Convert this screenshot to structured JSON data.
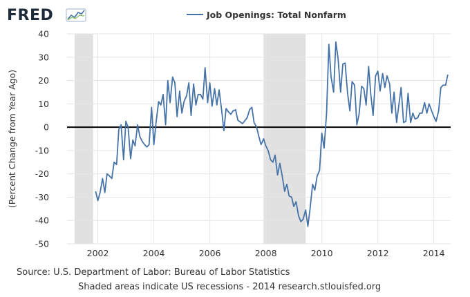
{
  "logo": {
    "text": "FRED"
  },
  "footer": {
    "source": "Source: U.S. Department of Labor: Bureau of Labor Statistics",
    "note": "Shaded areas indicate US recessions - 2014 research.stlouisfed.org"
  },
  "colors": {
    "line": "#4572a7",
    "recession": "#e1e1e1",
    "grid": "#e6e6e6",
    "zero_line": "#000000",
    "text": "#333333"
  },
  "chart_data": {
    "type": "line",
    "title": "",
    "xlabel": "",
    "ylabel": "(Percent Change from Year Ago)",
    "xlim": [
      2000.9,
      2014.6
    ],
    "ylim": [
      -50,
      40
    ],
    "yticks": [
      -50,
      -40,
      -30,
      -20,
      -10,
      0,
      10,
      20,
      30,
      40
    ],
    "xticks": [
      2002,
      2004,
      2006,
      2008,
      2010,
      2012,
      2014
    ],
    "grid": true,
    "legend_position": "top-center",
    "recessions": [
      [
        2001.17,
        2001.83
      ],
      [
        2007.92,
        2009.42
      ]
    ],
    "series": [
      {
        "name": "Job Openings: Total Nonfarm",
        "color": "#4572a7",
        "x": [
          2001.92,
          2002.0,
          2002.08,
          2002.17,
          2002.25,
          2002.33,
          2002.42,
          2002.5,
          2002.58,
          2002.67,
          2002.75,
          2002.83,
          2002.92,
          2003.0,
          2003.08,
          2003.17,
          2003.25,
          2003.33,
          2003.42,
          2003.5,
          2003.58,
          2003.67,
          2003.75,
          2003.83,
          2003.92,
          2004.0,
          2004.08,
          2004.17,
          2004.25,
          2004.33,
          2004.42,
          2004.5,
          2004.58,
          2004.67,
          2004.75,
          2004.83,
          2004.92,
          2005.0,
          2005.08,
          2005.17,
          2005.25,
          2005.33,
          2005.42,
          2005.5,
          2005.58,
          2005.67,
          2005.75,
          2005.83,
          2005.92,
          2006.0,
          2006.08,
          2006.17,
          2006.25,
          2006.33,
          2006.42,
          2006.5,
          2006.58,
          2006.67,
          2006.75,
          2006.83,
          2006.92,
          2007.0,
          2007.17,
          2007.33,
          2007.42,
          2007.5,
          2007.58,
          2007.67,
          2007.75,
          2007.83,
          2007.92,
          2008.0,
          2008.08,
          2008.17,
          2008.25,
          2008.33,
          2008.42,
          2008.5,
          2008.58,
          2008.67,
          2008.75,
          2008.83,
          2008.92,
          2009.0,
          2009.08,
          2009.17,
          2009.25,
          2009.33,
          2009.42,
          2009.5,
          2009.58,
          2009.67,
          2009.75,
          2009.83,
          2009.92,
          2010.0,
          2010.08,
          2010.17,
          2010.25,
          2010.33,
          2010.42,
          2010.5,
          2010.58,
          2010.67,
          2010.75,
          2010.83,
          2010.92,
          2011.0,
          2011.08,
          2011.17,
          2011.25,
          2011.33,
          2011.42,
          2011.5,
          2011.58,
          2011.67,
          2011.75,
          2011.83,
          2011.92,
          2012.0,
          2012.08,
          2012.17,
          2012.25,
          2012.33,
          2012.42,
          2012.5,
          2012.58,
          2012.67,
          2012.75,
          2012.83,
          2012.92,
          2013.0,
          2013.08,
          2013.17,
          2013.25,
          2013.33,
          2013.42,
          2013.5,
          2013.58,
          2013.67,
          2013.75,
          2013.83,
          2013.92,
          2014.0,
          2014.08,
          2014.17,
          2014.25,
          2014.33,
          2014.42,
          2014.5
        ],
        "y": [
          -27.5,
          -31.5,
          -28,
          -22,
          -28,
          -20,
          -21,
          -22,
          -15,
          -16,
          -1,
          1,
          -14,
          2.5,
          0,
          -13.5,
          -5.5,
          -8,
          1,
          -4,
          -6,
          -7.5,
          -8.5,
          -7.5,
          8.5,
          -7.5,
          2,
          11,
          9.5,
          14,
          1,
          20,
          10.5,
          21.5,
          19,
          4.5,
          15.5,
          6,
          11,
          13.5,
          19,
          5,
          18.5,
          9.5,
          14,
          14,
          12,
          25.5,
          10.5,
          19,
          9,
          16.5,
          9.5,
          16,
          7.5,
          -1.5,
          8,
          6.5,
          5.5,
          7,
          7.5,
          3,
          1.5,
          4,
          7.5,
          8.5,
          2,
          0,
          -4,
          -7.5,
          -5,
          -8,
          -10,
          -14,
          -15,
          -12,
          -20.5,
          -15.5,
          -20.5,
          -27.5,
          -24.5,
          -29.5,
          -30,
          -34,
          -32,
          -38,
          -40.5,
          -39.5,
          -35.5,
          -42.5,
          -35,
          -24.5,
          -27,
          -21,
          -18.5,
          -2.5,
          -9,
          6,
          35.5,
          21.5,
          15,
          36.5,
          29.5,
          15,
          27,
          27.5,
          14.5,
          7,
          19.5,
          18,
          1,
          5.5,
          17.5,
          16.5,
          9.5,
          26,
          14,
          5,
          22,
          24,
          15.5,
          23,
          17,
          22,
          18.5,
          6,
          15,
          2,
          9.5,
          17,
          2,
          2.5,
          14.5,
          2,
          6,
          3.5,
          4,
          6,
          6,
          10.5,
          6,
          10,
          7,
          4.5,
          2.5,
          7,
          17,
          18,
          18,
          22.5
        ]
      }
    ]
  }
}
